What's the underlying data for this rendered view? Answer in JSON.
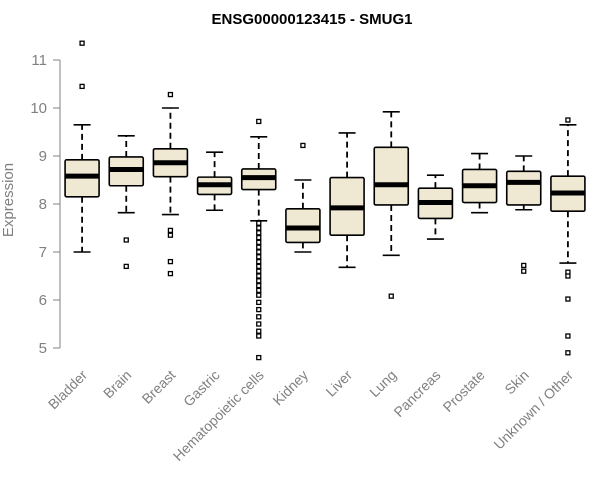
{
  "chart_data": {
    "type": "boxplot",
    "title": "ENSG00000123415 - SMUG1",
    "ylabel": "Expression",
    "xlabel": "",
    "ylim": [
      4.7,
      11.5
    ],
    "yticks": [
      5,
      6,
      7,
      8,
      9,
      10,
      11
    ],
    "grid": false,
    "colors": {
      "box_fill": "#efe8d2",
      "box_stroke": "#000000",
      "axis": "#808080"
    },
    "categories": [
      "Bladder",
      "Brain",
      "Breast",
      "Gastric",
      "Hematopoietic cells",
      "Kidney",
      "Liver",
      "Lung",
      "Pancreas",
      "Prostate",
      "Skin",
      "Unknown / Other"
    ],
    "boxes": [
      {
        "name": "Bladder",
        "whisker_low": 7.0,
        "q1": 8.15,
        "median": 8.58,
        "q3": 8.92,
        "whisker_high": 9.65,
        "outliers": [
          10.45,
          11.35
        ]
      },
      {
        "name": "Brain",
        "whisker_low": 7.82,
        "q1": 8.38,
        "median": 8.72,
        "q3": 8.98,
        "whisker_high": 9.42,
        "outliers": [
          7.25,
          6.7
        ]
      },
      {
        "name": "Breast",
        "whisker_low": 7.78,
        "q1": 8.57,
        "median": 8.86,
        "q3": 9.15,
        "whisker_high": 10.0,
        "outliers": [
          10.28,
          7.45,
          7.35,
          6.8,
          6.55
        ]
      },
      {
        "name": "Gastric",
        "whisker_low": 7.87,
        "q1": 8.2,
        "median": 8.4,
        "q3": 8.56,
        "whisker_high": 9.08,
        "outliers": []
      },
      {
        "name": "Hematopoietic cells",
        "whisker_low": 7.65,
        "q1": 8.3,
        "median": 8.55,
        "q3": 8.73,
        "whisker_high": 9.4,
        "outliers": [
          9.72,
          7.6,
          7.5,
          7.4,
          7.3,
          7.2,
          7.1,
          7.0,
          6.9,
          6.8,
          6.7,
          6.6,
          6.5,
          6.4,
          6.3,
          6.2,
          6.1,
          5.95,
          5.8,
          5.65,
          5.5,
          5.35,
          5.25,
          4.8
        ]
      },
      {
        "name": "Kidney",
        "whisker_low": 7.0,
        "q1": 7.2,
        "median": 7.5,
        "q3": 7.9,
        "whisker_high": 8.5,
        "outliers": [
          9.22
        ]
      },
      {
        "name": "Liver",
        "whisker_low": 6.68,
        "q1": 7.35,
        "median": 7.92,
        "q3": 8.55,
        "whisker_high": 9.48,
        "outliers": []
      },
      {
        "name": "Lung",
        "whisker_low": 6.93,
        "q1": 7.98,
        "median": 8.4,
        "q3": 9.18,
        "whisker_high": 9.92,
        "outliers": [
          6.08
        ]
      },
      {
        "name": "Pancreas",
        "whisker_low": 7.27,
        "q1": 7.7,
        "median": 8.03,
        "q3": 8.33,
        "whisker_high": 8.6,
        "outliers": []
      },
      {
        "name": "Prostate",
        "whisker_low": 7.82,
        "q1": 8.03,
        "median": 8.38,
        "q3": 8.72,
        "whisker_high": 9.05,
        "outliers": []
      },
      {
        "name": "Skin",
        "whisker_low": 7.88,
        "q1": 7.98,
        "median": 8.45,
        "q3": 8.68,
        "whisker_high": 9.0,
        "outliers": [
          6.72,
          6.6
        ]
      },
      {
        "name": "Unknown / Other",
        "whisker_low": 6.77,
        "q1": 7.85,
        "median": 8.23,
        "q3": 8.58,
        "whisker_high": 9.65,
        "outliers": [
          9.75,
          6.58,
          6.5,
          6.02,
          5.25,
          4.9
        ]
      }
    ]
  }
}
